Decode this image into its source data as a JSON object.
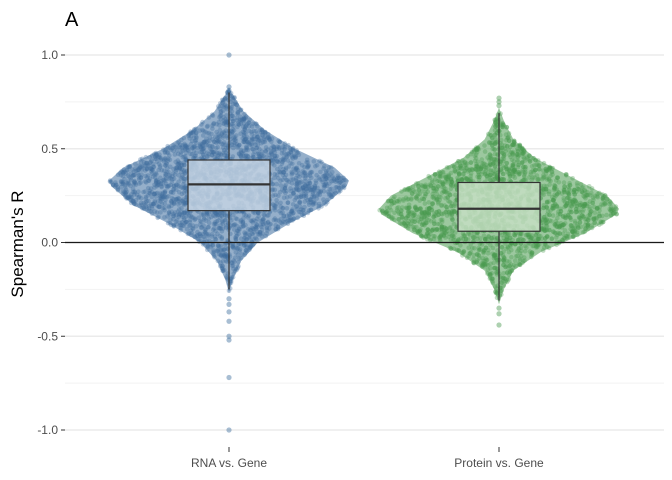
{
  "chart_data": {
    "type": "violin",
    "panel_tag": "A",
    "title": "",
    "xlabel": "",
    "ylabel": "Spearman's R",
    "ylim": [
      -1.08,
      1.08
    ],
    "yticks": [
      1.0,
      0.5,
      0.0,
      -0.5,
      -1.0
    ],
    "ytick_labels": [
      "1.0",
      "0.5",
      "0.0",
      "-0.5",
      "-1.0"
    ],
    "grid": true,
    "reference_line_y": 0.0,
    "categories": [
      "RNA vs. Gene",
      "Protein vs. Gene"
    ],
    "series": [
      {
        "category": "RNA vs. Gene",
        "color": "#3e6e9e",
        "box_fill": "#c6d4e3",
        "quartiles": [
          0.17,
          0.31,
          0.44
        ],
        "whiskers": [
          -0.25,
          0.8
        ],
        "range": [
          -0.27,
          0.83
        ],
        "density_profile": [
          [
            -0.27,
            0.0
          ],
          [
            -0.2,
            0.03
          ],
          [
            -0.1,
            0.1
          ],
          [
            0.0,
            0.24
          ],
          [
            0.1,
            0.5
          ],
          [
            0.2,
            0.8
          ],
          [
            0.3,
            0.98
          ],
          [
            0.33,
            1.0
          ],
          [
            0.4,
            0.88
          ],
          [
            0.5,
            0.55
          ],
          [
            0.6,
            0.3
          ],
          [
            0.7,
            0.12
          ],
          [
            0.8,
            0.02
          ],
          [
            0.83,
            0.0
          ]
        ],
        "outliers": [
          1.0,
          0.83,
          0.81,
          -0.3,
          -0.33,
          -0.37,
          -0.42,
          -0.5,
          -0.52,
          -0.72,
          -1.0
        ]
      },
      {
        "category": "Protein vs. Gene",
        "color": "#4a9a50",
        "box_fill": "#c8e0c6",
        "quartiles": [
          0.06,
          0.18,
          0.32
        ],
        "whiskers": [
          -0.31,
          0.69
        ],
        "range": [
          -0.33,
          0.72
        ],
        "density_profile": [
          [
            -0.33,
            0.0
          ],
          [
            -0.25,
            0.04
          ],
          [
            -0.15,
            0.12
          ],
          [
            -0.05,
            0.35
          ],
          [
            0.05,
            0.72
          ],
          [
            0.15,
            0.98
          ],
          [
            0.18,
            1.0
          ],
          [
            0.25,
            0.9
          ],
          [
            0.35,
            0.6
          ],
          [
            0.45,
            0.3
          ],
          [
            0.55,
            0.12
          ],
          [
            0.65,
            0.04
          ],
          [
            0.72,
            0.0
          ]
        ],
        "outliers": [
          0.77,
          0.75,
          0.73,
          -0.35,
          -0.38,
          -0.44
        ]
      }
    ]
  }
}
